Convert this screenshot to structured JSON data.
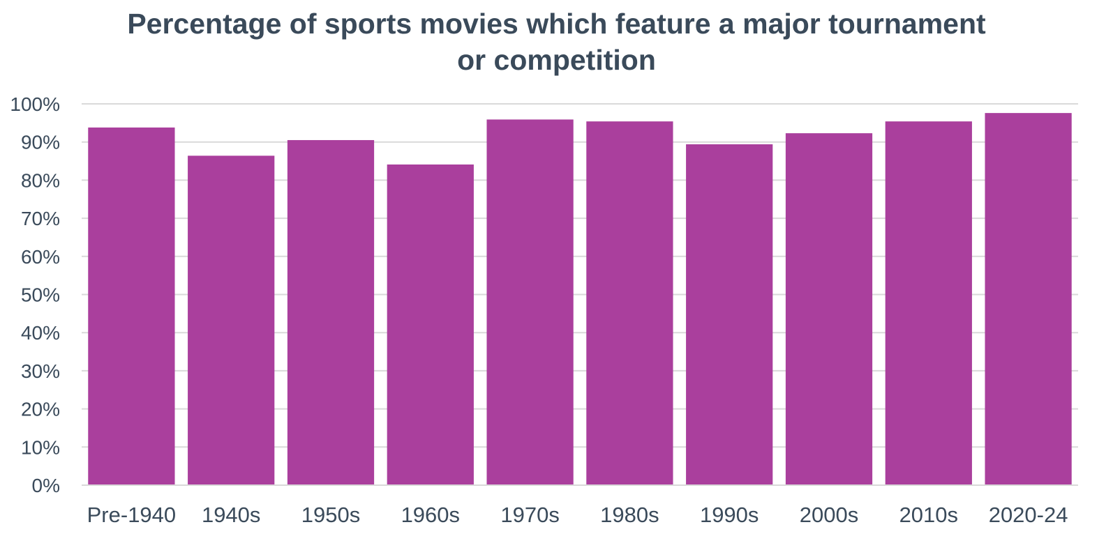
{
  "chart_data": {
    "type": "bar",
    "title_lines": [
      "Percentage of sports movies which feature a major tournament",
      "or competition"
    ],
    "categories": [
      "Pre-1940",
      "1940s",
      "1950s",
      "1960s",
      "1970s",
      "1980s",
      "1990s",
      "2000s",
      "2010s",
      "2020-24"
    ],
    "values": [
      93.8,
      86.4,
      90.5,
      84.1,
      95.9,
      95.4,
      89.4,
      92.3,
      95.4,
      97.6
    ],
    "y_ticks": [
      "0%",
      "10%",
      "20%",
      "30%",
      "40%",
      "50%",
      "60%",
      "70%",
      "80%",
      "90%",
      "100%"
    ],
    "ylim": [
      0,
      100
    ],
    "grid": true,
    "legend": "none",
    "bar_color": "#aa3f9d",
    "grid_color": "#d9d9d9",
    "text_color": "#3a4a5a"
  }
}
